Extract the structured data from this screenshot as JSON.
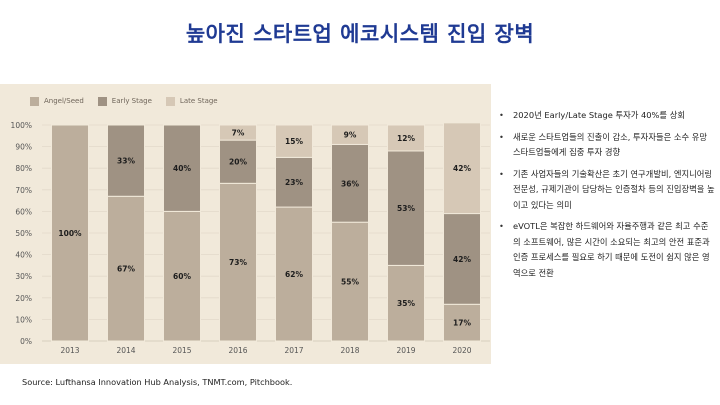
{
  "title": "높아진 스타트업 에코시스템 진입 장벽",
  "source": "Source: Lufthansa Innovation Hub Analysis, TNMT.com, Pitchbook.",
  "bullets": [
    "2020년 Early/Late Stage 투자가 40%를 상회",
    "새로운 스타트업들의 진출이 감소, 투자자들은 소수 유망 스타트업들에게 집중 투자 경향",
    "기존 사업자들의 기술확산은 초기 연구개발비, 엔지니어링 전문성, 규제기관이 담당하는 인증절차 등의 진입장벽을 높이고 있다는 의미",
    "eVOTL은 복잡한 하드웨어와 자율주행과 같은 최고 수준의 소프트웨어, 많은 시간이 소요되는 최고의 안전 표준과 인증 프로세스를 필요로 하기 때문에 도전이 쉽지 않은 영역으로 전환"
  ],
  "colors": {
    "panel_bg": "#f1e9da",
    "title": "#1f3a93",
    "Angel/Seed": "#bcae9c",
    "Early Stage": "#9f9283",
    "Late Stage": "#d6c8b6"
  },
  "chart_data": {
    "type": "bar",
    "stacked": true,
    "categories": [
      "2013",
      "2014",
      "2015",
      "2016",
      "2017",
      "2018",
      "2019",
      "2020"
    ],
    "series": [
      {
        "name": "Angel/Seed",
        "values": [
          100,
          67,
          60,
          73,
          62,
          55,
          35,
          17
        ]
      },
      {
        "name": "Early Stage",
        "values": [
          0,
          33,
          40,
          20,
          23,
          36,
          53,
          42
        ]
      },
      {
        "name": "Late Stage",
        "values": [
          0,
          0,
          0,
          7,
          15,
          9,
          12,
          42
        ]
      }
    ],
    "ylim": [
      0,
      100
    ],
    "yticks": [
      "0%",
      "10%",
      "20%",
      "30%",
      "40%",
      "50%",
      "60%",
      "70%",
      "80%",
      "90%",
      "100%"
    ],
    "grid": true,
    "legend": "top-left",
    "value_labels": true
  }
}
